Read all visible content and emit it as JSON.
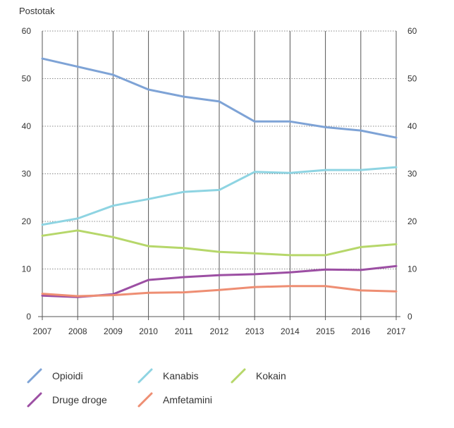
{
  "chart_data": {
    "type": "line",
    "ylabel": "Postotak",
    "x": [
      "2007",
      "2008",
      "2009",
      "2010",
      "2011",
      "2012",
      "2013",
      "2014",
      "2015",
      "2016",
      "2017"
    ],
    "ylim": [
      0,
      60
    ],
    "yticks": [
      0,
      10,
      20,
      30,
      40,
      50,
      60
    ],
    "grid": true,
    "legend_position": "bottom",
    "series": [
      {
        "name": "Opioidi",
        "color": "#7ea3d6",
        "values": [
          54.2,
          52.5,
          50.8,
          47.7,
          46.2,
          45.2,
          41.0,
          41.0,
          39.8,
          39.1,
          37.6
        ]
      },
      {
        "name": "Kanabis",
        "color": "#8ed4e2",
        "values": [
          19.3,
          20.6,
          23.3,
          24.7,
          26.2,
          26.6,
          30.4,
          30.2,
          30.8,
          30.8,
          31.4
        ]
      },
      {
        "name": "Kokain",
        "color": "#b6d76a",
        "values": [
          17.0,
          18.1,
          16.7,
          14.8,
          14.4,
          13.6,
          13.3,
          12.9,
          12.9,
          14.6,
          15.2
        ]
      },
      {
        "name": "Druge droge",
        "color": "#9c4fa3",
        "values": [
          4.4,
          4.1,
          4.7,
          7.7,
          8.3,
          8.7,
          8.9,
          9.3,
          9.9,
          9.8,
          10.6
        ]
      },
      {
        "name": "Amfetamini",
        "color": "#ee8e73",
        "values": [
          4.8,
          4.3,
          4.5,
          5.0,
          5.1,
          5.6,
          6.2,
          6.4,
          6.4,
          5.5,
          5.3
        ]
      }
    ]
  }
}
